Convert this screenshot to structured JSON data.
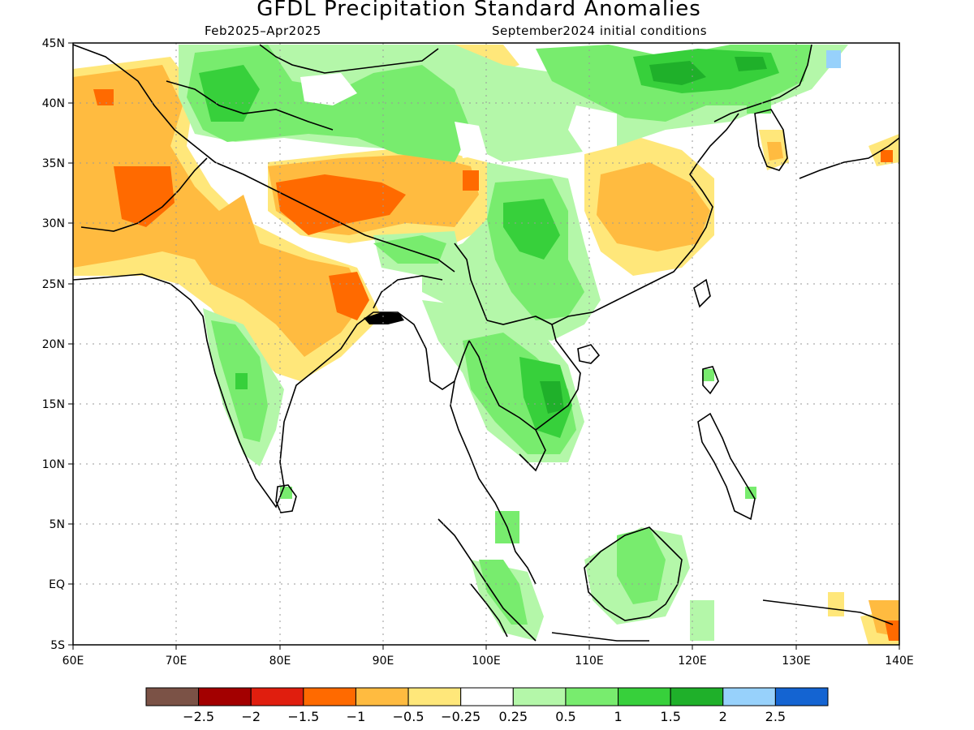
{
  "title": "GFDL Precipitation Standard Anomalies",
  "subtitle_left": "Feb2025–Apr2025",
  "subtitle_right": "September2024 initial conditions",
  "lon_labels": [
    "60E",
    "70E",
    "80E",
    "90E",
    "100E",
    "110E",
    "120E",
    "130E",
    "140E"
  ],
  "lat_labels": [
    "45N",
    "40N",
    "35N",
    "30N",
    "25N",
    "20N",
    "15N",
    "10N",
    "5N",
    "EQ",
    "5S"
  ],
  "colorbar": {
    "colors": [
      "#7b5246",
      "#a30000",
      "#e01e0e",
      "#ff6a00",
      "#ffbb40",
      "#ffe77a",
      "#ffffff",
      "#b4f7a9",
      "#78ec6e",
      "#37d03b",
      "#1fb02a",
      "#97d1fb",
      "#1464d2"
    ],
    "labels": [
      "−2.5",
      "−2",
      "−1.5",
      "−1",
      "−0.5",
      "−0.25",
      "0.25",
      "0.5",
      "1",
      "1.5",
      "2",
      "2.5"
    ]
  },
  "colors": {
    "dry_strong": "#ff6a00",
    "dry": "#ffbb40",
    "dry_weak": "#ffe77a",
    "wet_weak": "#b4f7a9",
    "wet": "#78ec6e",
    "wet_strong": "#37d03b",
    "wet_very": "#1fb02a",
    "coast": "#000000",
    "grid": "#999999"
  }
}
